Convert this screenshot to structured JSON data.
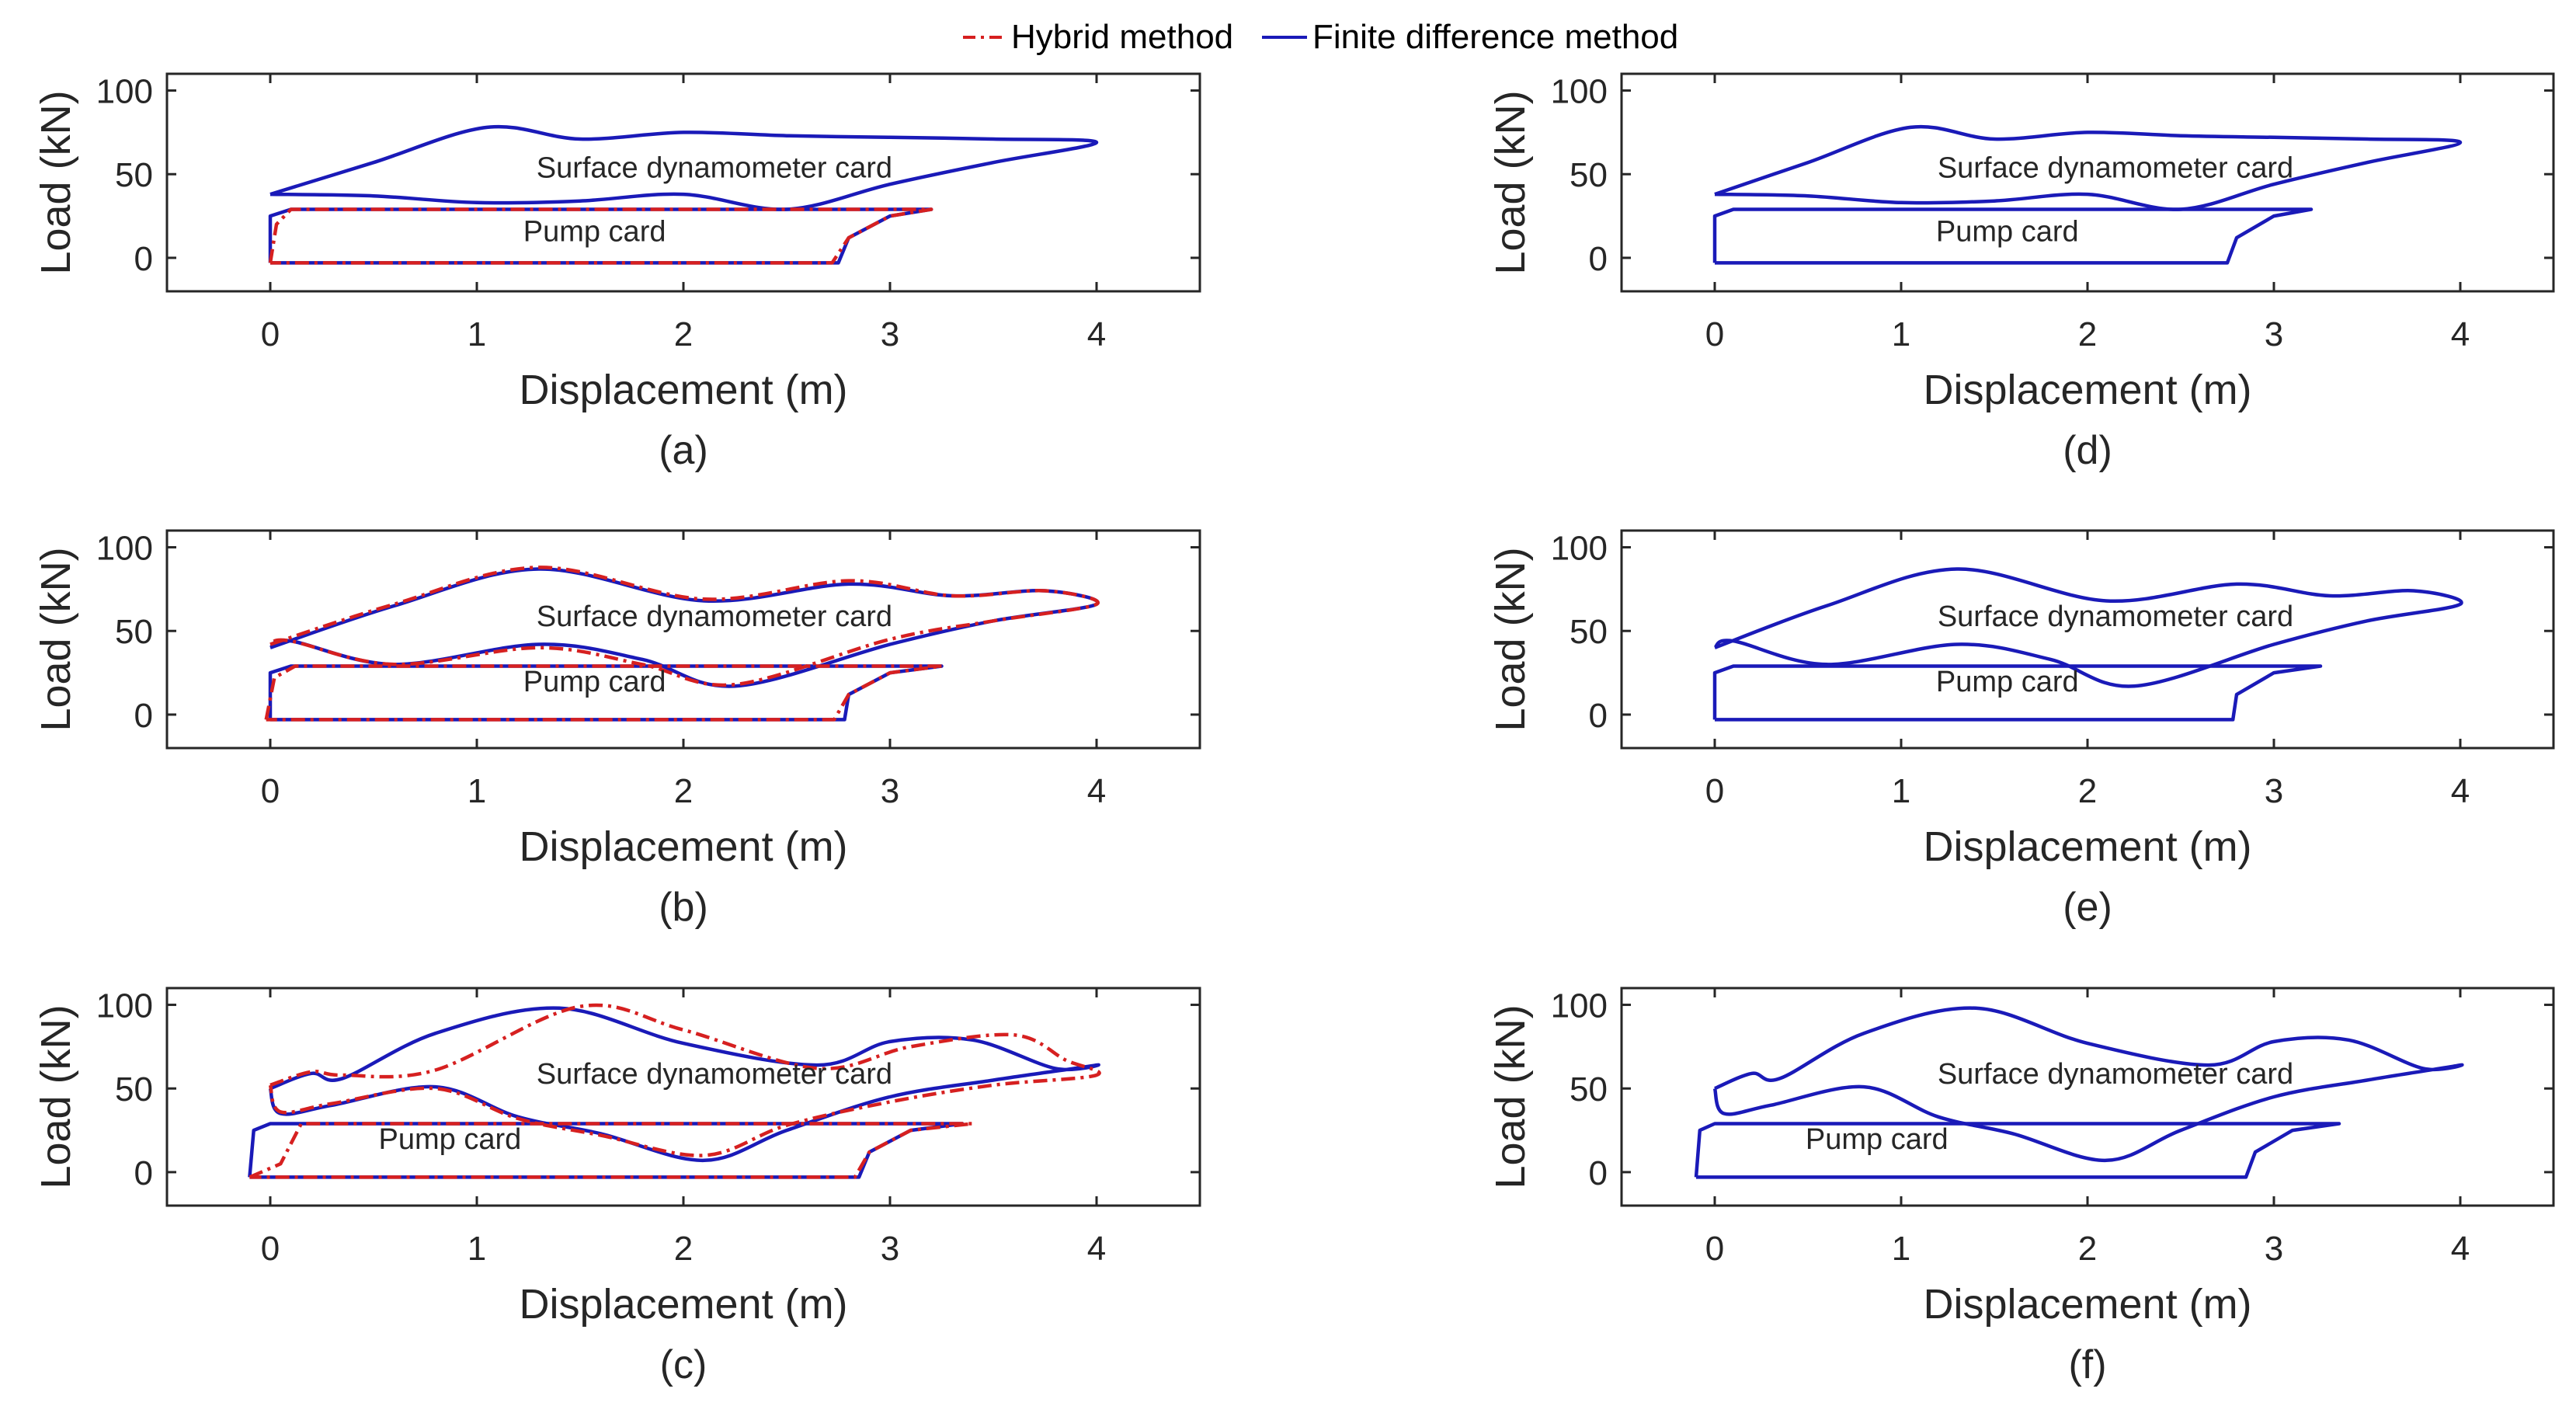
{
  "legend": {
    "hybrid_label": "Hybrid method",
    "fd_label": "Finite difference method",
    "hybrid_color": "#d62020",
    "fd_color": "#1a1ab8"
  },
  "chart_data": [
    {
      "id": "a",
      "type": "line",
      "subplot_label": "(a)",
      "xlabel": "Displacement (m)",
      "ylabel": "Load (kN)",
      "xlim": [
        -0.5,
        4.5
      ],
      "ylim": [
        -20,
        110
      ],
      "xticks": [
        0,
        1,
        2,
        3,
        4
      ],
      "yticks": [
        0,
        50,
        100
      ],
      "annotations": [
        {
          "text": "Surface dynamometer card",
          "x": 2.15,
          "y": 48
        },
        {
          "text": "Pump card",
          "x": 1.57,
          "y": 10
        }
      ],
      "series": [
        {
          "name": "Finite difference method",
          "style": "solid",
          "curve": "surface",
          "x": [
            0,
            0.5,
            1.05,
            1.5,
            2.0,
            2.5,
            3.0,
            3.5,
            4.0,
            3.5,
            3.0,
            2.5,
            2.0,
            1.5,
            1.0,
            0.5,
            0
          ],
          "y": [
            38,
            57,
            78,
            71,
            75,
            73,
            72,
            71,
            69,
            57,
            44,
            29,
            38,
            34,
            33,
            37,
            38
          ]
        },
        {
          "name": "Finite difference method",
          "style": "solid",
          "curve": "pump",
          "x": [
            0,
            0,
            0.1,
            1.5,
            3.2,
            3.0,
            2.8,
            2.75,
            1.5,
            0
          ],
          "y": [
            -3,
            25,
            29,
            29,
            29,
            25,
            12,
            -3,
            -3,
            -3
          ]
        },
        {
          "name": "Hybrid method",
          "style": "dashdot",
          "curve": "pump",
          "x": [
            0,
            0.03,
            0.1,
            1.5,
            3.2,
            3.0,
            2.8,
            2.72,
            1.5,
            0
          ],
          "y": [
            -3,
            20,
            29,
            29,
            29,
            25,
            12,
            -3,
            -3,
            -3
          ]
        }
      ]
    },
    {
      "id": "b",
      "type": "line",
      "subplot_label": "(b)",
      "xlabel": "Displacement (m)",
      "ylabel": "Load (kN)",
      "xlim": [
        -0.5,
        4.5
      ],
      "ylim": [
        -20,
        110
      ],
      "xticks": [
        0,
        1,
        2,
        3,
        4
      ],
      "yticks": [
        0,
        50,
        100
      ],
      "annotations": [
        {
          "text": "Surface dynamometer card",
          "x": 2.15,
          "y": 53
        },
        {
          "text": "Pump card",
          "x": 1.57,
          "y": 14
        }
      ],
      "series": [
        {
          "name": "Finite difference method",
          "style": "solid",
          "curve": "surface",
          "x": [
            0,
            0.6,
            1.3,
            2.1,
            2.8,
            3.3,
            3.75,
            4.0,
            3.5,
            3.0,
            2.25,
            1.8,
            1.3,
            0.6,
            0.1,
            0
          ],
          "y": [
            40,
            65,
            87,
            68,
            78,
            71,
            74,
            66,
            56,
            42,
            17,
            33,
            42,
            30,
            44,
            40
          ]
        },
        {
          "name": "Hybrid method",
          "style": "dashdot",
          "curve": "surface",
          "x": [
            0,
            0.6,
            1.3,
            2.1,
            2.8,
            3.3,
            3.75,
            4.0,
            3.5,
            3.0,
            2.25,
            1.8,
            1.3,
            0.6,
            0.1,
            0
          ],
          "y": [
            42,
            66,
            88,
            69,
            80,
            71,
            74,
            66,
            56,
            45,
            18,
            30,
            40,
            30,
            44,
            42
          ]
        },
        {
          "name": "Finite difference method",
          "style": "solid",
          "curve": "pump",
          "x": [
            0,
            0,
            0.1,
            1.5,
            3.25,
            3.0,
            2.8,
            2.78,
            1.5,
            0
          ],
          "y": [
            -3,
            25,
            29,
            29,
            29,
            25,
            12,
            -3,
            -3,
            -3
          ]
        },
        {
          "name": "Hybrid method",
          "style": "dashdot",
          "curve": "pump",
          "x": [
            -0.02,
            0.02,
            0.12,
            1.5,
            3.25,
            3.0,
            2.8,
            2.73,
            1.5,
            -0.02
          ],
          "y": [
            -3,
            22,
            29,
            29,
            29,
            25,
            12,
            -3,
            -3,
            -3
          ]
        }
      ]
    },
    {
      "id": "c",
      "type": "line",
      "subplot_label": "(c)",
      "xlabel": "Displacement (m)",
      "ylabel": "Load (kN)",
      "xlim": [
        -0.5,
        4.5
      ],
      "ylim": [
        -20,
        110
      ],
      "xticks": [
        0,
        1,
        2,
        3,
        4
      ],
      "yticks": [
        0,
        50,
        100
      ],
      "annotations": [
        {
          "text": "Surface dynamometer card",
          "x": 2.15,
          "y": 53
        },
        {
          "text": "Pump card",
          "x": 0.87,
          "y": 14
        }
      ],
      "series": [
        {
          "name": "Finite difference method",
          "style": "solid",
          "curve": "surface",
          "x": [
            0,
            0.2,
            0.35,
            0.8,
            1.4,
            2.0,
            2.65,
            3.0,
            3.4,
            3.8,
            4.0,
            3.5,
            3.0,
            2.5,
            2.1,
            1.6,
            1.2,
            0.8,
            0.3,
            0.05,
            0
          ],
          "y": [
            50,
            59,
            56,
            83,
            98,
            77,
            64,
            78,
            79,
            62,
            64,
            55,
            45,
            25,
            7,
            23,
            33,
            51,
            40,
            35,
            50
          ]
        },
        {
          "name": "Hybrid method",
          "style": "dashdot",
          "curve": "surface",
          "x": [
            0,
            0.2,
            0.35,
            0.8,
            1.5,
            2.0,
            2.65,
            3.1,
            3.6,
            3.85,
            4.0,
            3.5,
            3.0,
            2.5,
            2.1,
            1.6,
            1.2,
            0.8,
            0.3,
            0.05,
            0
          ],
          "y": [
            52,
            60,
            58,
            61,
            99,
            85,
            62,
            75,
            82,
            67,
            58,
            52,
            42,
            28,
            10,
            22,
            32,
            50,
            41,
            36,
            52
          ]
        },
        {
          "name": "Finite difference method",
          "style": "solid",
          "curve": "pump",
          "x": [
            -0.1,
            -0.08,
            0,
            1.5,
            3.35,
            3.1,
            2.9,
            2.85,
            1.5,
            -0.1
          ],
          "y": [
            -3,
            25,
            29,
            29,
            29,
            25,
            12,
            -3,
            -3,
            -3
          ]
        },
        {
          "name": "Hybrid method",
          "style": "dashdot",
          "curve": "pump",
          "x": [
            -0.1,
            0.05,
            0.15,
            1.5,
            3.4,
            3.1,
            2.9,
            2.83,
            1.5,
            -0.1
          ],
          "y": [
            -3,
            5,
            29,
            29,
            29,
            25,
            12,
            -3,
            -3,
            -3
          ]
        }
      ]
    },
    {
      "id": "d",
      "type": "line",
      "subplot_label": "(d)",
      "xlabel": "Displacement (m)",
      "ylabel": "Load (kN)",
      "xlim": [
        -0.5,
        4.5
      ],
      "ylim": [
        -20,
        110
      ],
      "xticks": [
        0,
        1,
        2,
        3,
        4
      ],
      "yticks": [
        0,
        50,
        100
      ],
      "annotations": [
        {
          "text": "Surface dynamometer card",
          "x": 2.15,
          "y": 48
        },
        {
          "text": "Pump card",
          "x": 1.57,
          "y": 10
        }
      ],
      "series": [
        {
          "name": "Finite difference method",
          "style": "solid",
          "curve": "surface",
          "x": [
            0,
            0.5,
            1.05,
            1.5,
            2.0,
            2.5,
            3.0,
            3.5,
            4.0,
            3.5,
            3.0,
            2.5,
            2.0,
            1.5,
            1.0,
            0.5,
            0
          ],
          "y": [
            38,
            57,
            78,
            71,
            75,
            73,
            72,
            71,
            69,
            57,
            44,
            29,
            38,
            34,
            33,
            37,
            38
          ]
        },
        {
          "name": "Finite difference method",
          "style": "solid",
          "curve": "pump",
          "x": [
            0,
            0,
            0.1,
            1.5,
            3.2,
            3.0,
            2.8,
            2.75,
            1.5,
            0
          ],
          "y": [
            -3,
            25,
            29,
            29,
            29,
            25,
            12,
            -3,
            -3,
            -3
          ]
        }
      ]
    },
    {
      "id": "e",
      "type": "line",
      "subplot_label": "(e)",
      "xlabel": "Displacement (m)",
      "ylabel": "Load (kN)",
      "xlim": [
        -0.5,
        4.5
      ],
      "ylim": [
        -20,
        110
      ],
      "xticks": [
        0,
        1,
        2,
        3,
        4
      ],
      "yticks": [
        0,
        50,
        100
      ],
      "annotations": [
        {
          "text": "Surface dynamometer card",
          "x": 2.15,
          "y": 53
        },
        {
          "text": "Pump card",
          "x": 1.57,
          "y": 14
        }
      ],
      "series": [
        {
          "name": "Finite difference method",
          "style": "solid",
          "curve": "surface",
          "x": [
            0,
            0.6,
            1.3,
            2.1,
            2.8,
            3.3,
            3.75,
            4.0,
            3.5,
            3.0,
            2.25,
            1.8,
            1.3,
            0.6,
            0.1,
            0
          ],
          "y": [
            40,
            65,
            87,
            68,
            78,
            71,
            74,
            66,
            56,
            42,
            17,
            33,
            42,
            30,
            44,
            40
          ]
        },
        {
          "name": "Finite difference method",
          "style": "solid",
          "curve": "pump",
          "x": [
            0,
            0,
            0.1,
            1.5,
            3.25,
            3.0,
            2.8,
            2.78,
            1.5,
            0
          ],
          "y": [
            -3,
            25,
            29,
            29,
            29,
            25,
            12,
            -3,
            -3,
            -3
          ]
        }
      ]
    },
    {
      "id": "f",
      "type": "line",
      "subplot_label": "(f)",
      "xlabel": "Displacement (m)",
      "ylabel": "Load (kN)",
      "xlim": [
        -0.5,
        4.5
      ],
      "ylim": [
        -20,
        110
      ],
      "xticks": [
        0,
        1,
        2,
        3,
        4
      ],
      "yticks": [
        0,
        50,
        100
      ],
      "annotations": [
        {
          "text": "Surface dynamometer card",
          "x": 2.15,
          "y": 53
        },
        {
          "text": "Pump card",
          "x": 0.87,
          "y": 14
        }
      ],
      "series": [
        {
          "name": "Finite difference method",
          "style": "solid",
          "curve": "surface",
          "x": [
            0,
            0.2,
            0.35,
            0.8,
            1.4,
            2.0,
            2.65,
            3.0,
            3.4,
            3.8,
            4.0,
            3.5,
            3.0,
            2.5,
            2.1,
            1.6,
            1.2,
            0.8,
            0.3,
            0.05,
            0
          ],
          "y": [
            50,
            59,
            56,
            83,
            98,
            77,
            64,
            78,
            79,
            62,
            64,
            55,
            45,
            25,
            7,
            23,
            33,
            51,
            40,
            35,
            50
          ]
        },
        {
          "name": "Finite difference method",
          "style": "solid",
          "curve": "pump",
          "x": [
            -0.1,
            -0.08,
            0,
            1.5,
            3.35,
            3.1,
            2.9,
            2.85,
            1.5,
            -0.1
          ],
          "y": [
            -3,
            25,
            29,
            29,
            29,
            25,
            12,
            -3,
            -3,
            -3
          ]
        }
      ]
    }
  ]
}
